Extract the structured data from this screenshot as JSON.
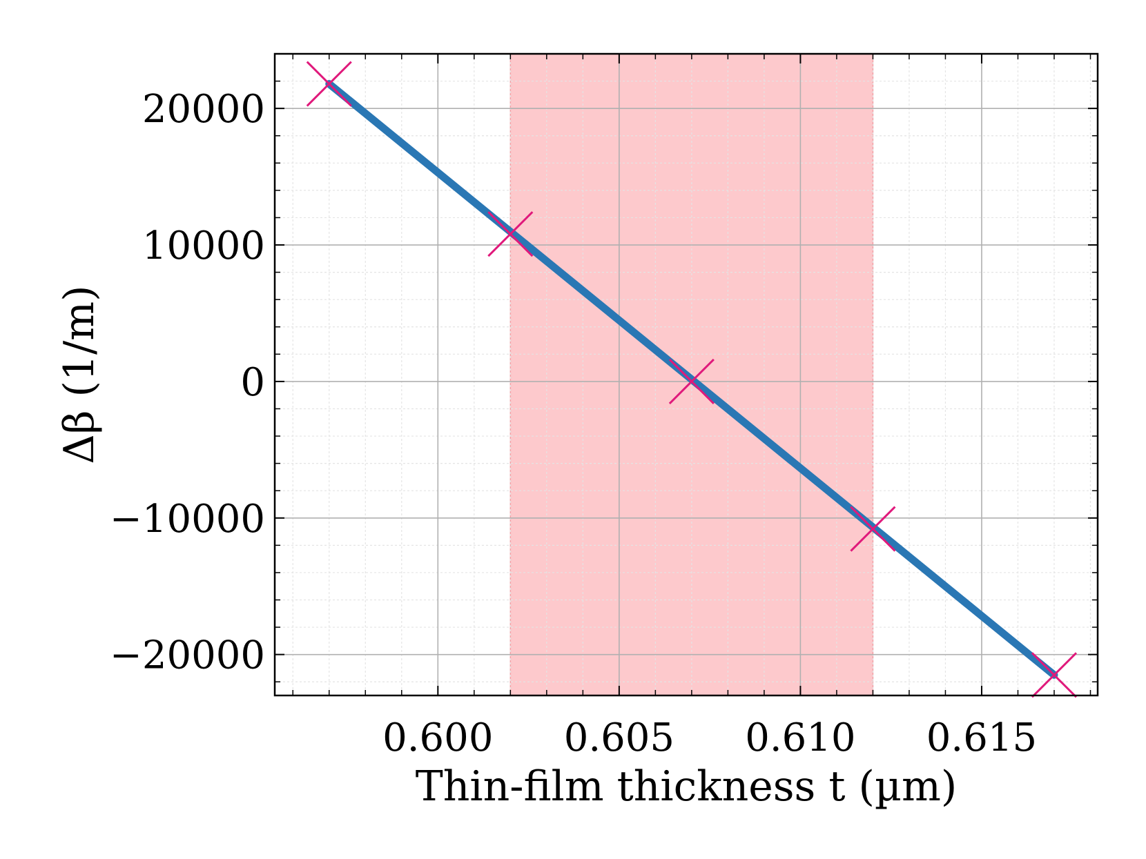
{
  "chart_data": {
    "type": "line",
    "xlabel": "Thin-film thickness t (µm)",
    "ylabel": "Δβ (1/m)",
    "xlim": [
      0.5955,
      0.6182
    ],
    "ylim": [
      -23000,
      24000
    ],
    "x_ticks": [
      0.6,
      0.605,
      0.61,
      0.615
    ],
    "x_tick_labels": [
      "0.600",
      "0.605",
      "0.610",
      "0.615"
    ],
    "y_ticks": [
      -20000,
      -10000,
      0,
      10000,
      20000
    ],
    "y_tick_labels": [
      "−20000",
      "−10000",
      "0",
      "10000",
      "20000"
    ],
    "grid": true,
    "shaded_region": {
      "x_start": 0.602,
      "x_end": 0.612,
      "color": "#fdc9cc"
    },
    "series": [
      {
        "style": "line",
        "color": "#2a77b4",
        "x": [
          0.597,
          0.617
        ],
        "y": [
          21800,
          -21500
        ]
      },
      {
        "style": "markers",
        "marker": "x",
        "color": "#e0197b",
        "x": [
          0.597,
          0.602,
          0.607,
          0.612,
          0.617
        ],
        "y": [
          21800,
          10800,
          0,
          -10800,
          -21500
        ]
      }
    ]
  }
}
